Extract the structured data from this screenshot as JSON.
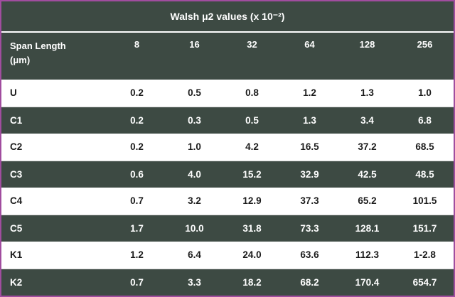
{
  "table": {
    "title": "Walsh μ2 values (x 10⁻²)",
    "header": {
      "label_line1": "Span Length",
      "label_line2": "(μm)"
    },
    "columns": [
      "8",
      "16",
      "32",
      "64",
      "128",
      "256"
    ],
    "rows": [
      {
        "label": "U",
        "values": [
          "0.2",
          "0.5",
          "0.8",
          "1.2",
          "1.3",
          "1.0"
        ]
      },
      {
        "label": "C1",
        "values": [
          "0.2",
          "0.3",
          "0.5",
          "1.3",
          "3.4",
          "6.8"
        ]
      },
      {
        "label": "C2",
        "values": [
          "0.2",
          "1.0",
          "4.2",
          "16.5",
          "37.2",
          "68.5"
        ]
      },
      {
        "label": "C3",
        "values": [
          "0.6",
          "4.0",
          "15.2",
          "32.9",
          "42.5",
          "48.5"
        ]
      },
      {
        "label": "C4",
        "values": [
          "0.7",
          "3.2",
          "12.9",
          "37.3",
          "65.2",
          "101.5"
        ]
      },
      {
        "label": "C5",
        "values": [
          "1.7",
          "10.0",
          "31.8",
          "73.3",
          "128.1",
          "151.7"
        ]
      },
      {
        "label": "K1",
        "values": [
          "1.2",
          "6.4",
          "24.0",
          "63.6",
          "112.3",
          "1-2.8"
        ]
      },
      {
        "label": "K2",
        "values": [
          "0.7",
          "3.3",
          "18.2",
          "68.2",
          "170.4",
          "654.7"
        ]
      }
    ]
  },
  "colors": {
    "dark_row": "#3d4a43",
    "light_row": "#ffffff",
    "border": "#a14d9f",
    "header_text": "#ffffff",
    "data_text": "#1b1b1b"
  },
  "chart_data": {
    "type": "table",
    "title": "Walsh μ2 values (x 10⁻²)",
    "row_header": "Span Length (μm)",
    "columns": [
      8,
      16,
      32,
      64,
      128,
      256
    ],
    "rows": [
      {
        "label": "U",
        "values": [
          0.2,
          0.5,
          0.8,
          1.2,
          1.3,
          1.0
        ]
      },
      {
        "label": "C1",
        "values": [
          0.2,
          0.3,
          0.5,
          1.3,
          3.4,
          6.8
        ]
      },
      {
        "label": "C2",
        "values": [
          0.2,
          1.0,
          4.2,
          16.5,
          37.2,
          68.5
        ]
      },
      {
        "label": "C3",
        "values": [
          0.6,
          4.0,
          15.2,
          32.9,
          42.5,
          48.5
        ]
      },
      {
        "label": "C4",
        "values": [
          0.7,
          3.2,
          12.9,
          37.3,
          65.2,
          101.5
        ]
      },
      {
        "label": "C5",
        "values": [
          1.7,
          10.0,
          31.8,
          73.3,
          128.1,
          151.7
        ]
      },
      {
        "label": "K1",
        "values": [
          1.2,
          6.4,
          24.0,
          63.6,
          112.3,
          "1-2.8"
        ]
      },
      {
        "label": "K2",
        "values": [
          0.7,
          3.3,
          18.2,
          68.2,
          170.4,
          654.7
        ]
      }
    ]
  }
}
